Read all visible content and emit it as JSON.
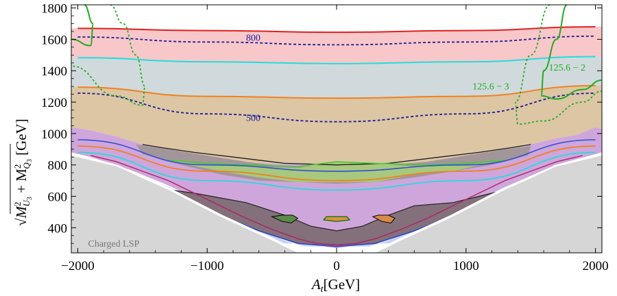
{
  "chart_data": {
    "type": "contour",
    "title": "",
    "xlabel": "A_t[GeV]",
    "ylabel": "sqrt(M_U3^2 + M_Q3^2) [GeV]",
    "xlim": [
      -2050,
      2050
    ],
    "ylim": [
      240,
      1820
    ],
    "x_ticks": [
      -2000,
      -1000,
      0,
      1000,
      2000
    ],
    "x_tick_labels": [
      "−2000",
      "−1000",
      "0",
      "1000",
      "2000"
    ],
    "y_ticks": [
      400,
      600,
      800,
      1000,
      1200,
      1400,
      1600,
      1800
    ],
    "y_tick_labels": [
      "400",
      "600",
      "800",
      "1000",
      "1200",
      "1400",
      "1600",
      "1800"
    ],
    "ylabel_parts": {
      "t1": "√",
      "t2": "M",
      "s1": "2",
      "b1": "U",
      "b1s": "3",
      "t3": " + M",
      "s2": "2",
      "b2": "Q",
      "b2s": "3",
      "t4": " [GeV]"
    },
    "xlabel_parts": {
      "a": "A",
      "t": "t",
      "rest": "[GeV]"
    },
    "annotations": [
      {
        "text": "800",
        "at": [
          -700,
          1590
        ],
        "color": "#1a1a9a"
      },
      {
        "text": "500",
        "at": [
          -700,
          1080
        ],
        "color": "#1a1a9a"
      },
      {
        "text": "125.6 − 3",
        "at": [
          1050,
          1280
        ],
        "color": "#22aa22"
      },
      {
        "text": "125.6 − 2",
        "at": [
          1640,
          1400
        ],
        "color": "#22aa22"
      },
      {
        "text": "Charged LSP",
        "at": [
          -1920,
          280
        ],
        "color": "#777777"
      }
    ],
    "curves": [
      {
        "name": "red-contour",
        "color": "#e02020",
        "points": [
          [
            -2000,
            1670
          ],
          [
            -1000,
            1656
          ],
          [
            0,
            1645
          ],
          [
            1000,
            1656
          ],
          [
            2000,
            1680
          ]
        ]
      },
      {
        "name": "mass-800",
        "color": "#1a1a9a",
        "style": "dashed",
        "points": [
          [
            -2000,
            1615
          ],
          [
            -1000,
            1583
          ],
          [
            0,
            1565
          ],
          [
            1000,
            1583
          ],
          [
            2000,
            1620
          ]
        ]
      },
      {
        "name": "cyan-contour",
        "color": "#22dddd",
        "points": [
          [
            -2000,
            1483
          ],
          [
            -1000,
            1457
          ],
          [
            0,
            1445
          ],
          [
            1000,
            1457
          ],
          [
            2000,
            1490
          ]
        ]
      },
      {
        "name": "orange-contour",
        "color": "#f08020",
        "points": [
          [
            -2000,
            1295
          ],
          [
            -1000,
            1237
          ],
          [
            0,
            1225
          ],
          [
            1000,
            1237
          ],
          [
            2000,
            1305
          ]
        ]
      },
      {
        "name": "mass-500",
        "color": "#1a1a9a",
        "style": "dashed",
        "points": [
          [
            -2000,
            1257
          ],
          [
            -1000,
            1125
          ],
          [
            0,
            1075
          ],
          [
            1000,
            1125
          ],
          [
            2000,
            1257
          ]
        ]
      }
    ]
  }
}
